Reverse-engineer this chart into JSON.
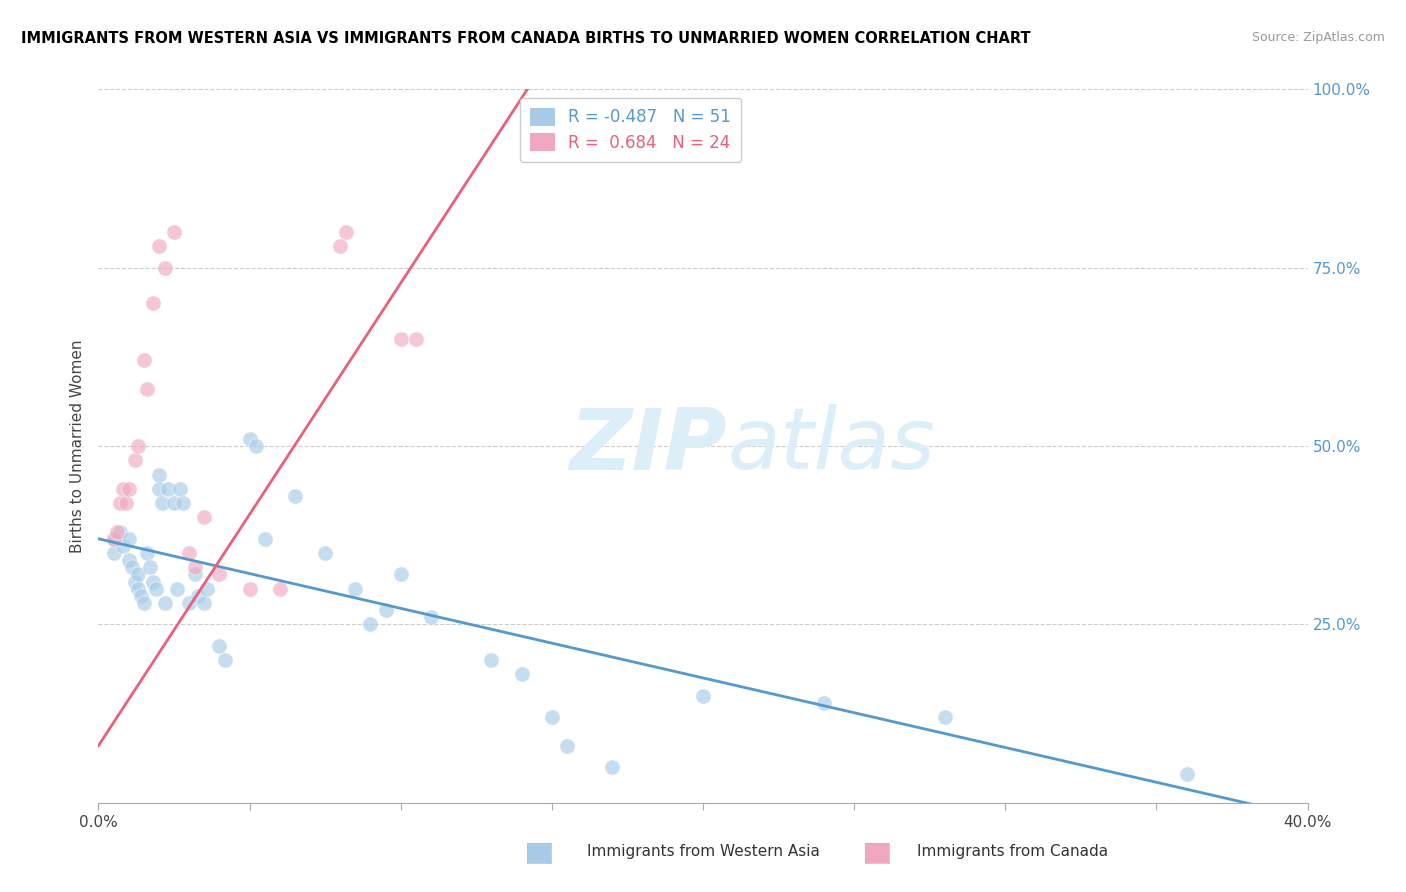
{
  "title": "IMMIGRANTS FROM WESTERN ASIA VS IMMIGRANTS FROM CANADA BIRTHS TO UNMARRIED WOMEN CORRELATION CHART",
  "source": "Source: ZipAtlas.com",
  "ylabel_label": "Births to Unmarried Women",
  "legend_blue": "Immigrants from Western Asia",
  "legend_pink": "Immigrants from Canada",
  "R_blue": -0.487,
  "N_blue": 51,
  "R_pink": 0.684,
  "N_pink": 24,
  "blue_color": "#a8cce8",
  "pink_color": "#f0a8c0",
  "blue_line_color": "#5599cc",
  "pink_line_color": "#e8607a",
  "watermark_color": "#dceef8",
  "blue_points": [
    [
      0.005,
      0.37
    ],
    [
      0.005,
      0.35
    ],
    [
      0.007,
      0.38
    ],
    [
      0.008,
      0.36
    ],
    [
      0.01,
      0.37
    ],
    [
      0.01,
      0.34
    ],
    [
      0.011,
      0.33
    ],
    [
      0.012,
      0.31
    ],
    [
      0.013,
      0.3
    ],
    [
      0.013,
      0.32
    ],
    [
      0.014,
      0.29
    ],
    [
      0.015,
      0.28
    ],
    [
      0.016,
      0.35
    ],
    [
      0.017,
      0.33
    ],
    [
      0.018,
      0.31
    ],
    [
      0.019,
      0.3
    ],
    [
      0.02,
      0.46
    ],
    [
      0.02,
      0.44
    ],
    [
      0.021,
      0.42
    ],
    [
      0.022,
      0.28
    ],
    [
      0.023,
      0.44
    ],
    [
      0.025,
      0.42
    ],
    [
      0.026,
      0.3
    ],
    [
      0.027,
      0.44
    ],
    [
      0.028,
      0.42
    ],
    [
      0.03,
      0.28
    ],
    [
      0.032,
      0.32
    ],
    [
      0.033,
      0.29
    ],
    [
      0.035,
      0.28
    ],
    [
      0.036,
      0.3
    ],
    [
      0.04,
      0.22
    ],
    [
      0.042,
      0.2
    ],
    [
      0.05,
      0.51
    ],
    [
      0.052,
      0.5
    ],
    [
      0.055,
      0.37
    ],
    [
      0.065,
      0.43
    ],
    [
      0.075,
      0.35
    ],
    [
      0.085,
      0.3
    ],
    [
      0.09,
      0.25
    ],
    [
      0.095,
      0.27
    ],
    [
      0.1,
      0.32
    ],
    [
      0.11,
      0.26
    ],
    [
      0.13,
      0.2
    ],
    [
      0.14,
      0.18
    ],
    [
      0.15,
      0.12
    ],
    [
      0.155,
      0.08
    ],
    [
      0.17,
      0.05
    ],
    [
      0.2,
      0.15
    ],
    [
      0.24,
      0.14
    ],
    [
      0.28,
      0.12
    ],
    [
      0.36,
      0.04
    ]
  ],
  "pink_points": [
    [
      0.005,
      0.37
    ],
    [
      0.006,
      0.38
    ],
    [
      0.007,
      0.42
    ],
    [
      0.008,
      0.44
    ],
    [
      0.009,
      0.42
    ],
    [
      0.01,
      0.44
    ],
    [
      0.012,
      0.48
    ],
    [
      0.013,
      0.5
    ],
    [
      0.015,
      0.62
    ],
    [
      0.016,
      0.58
    ],
    [
      0.018,
      0.7
    ],
    [
      0.02,
      0.78
    ],
    [
      0.022,
      0.75
    ],
    [
      0.025,
      0.8
    ],
    [
      0.03,
      0.35
    ],
    [
      0.032,
      0.33
    ],
    [
      0.035,
      0.4
    ],
    [
      0.04,
      0.32
    ],
    [
      0.05,
      0.3
    ],
    [
      0.06,
      0.3
    ],
    [
      0.08,
      0.78
    ],
    [
      0.082,
      0.8
    ],
    [
      0.1,
      0.65
    ],
    [
      0.105,
      0.65
    ]
  ],
  "x_min": 0.0,
  "x_max": 0.4,
  "y_min": 0.0,
  "y_max": 1.0,
  "ytick_vals": [
    0.25,
    0.5,
    0.75,
    1.0
  ],
  "ytick_labels": [
    "25.0%",
    "50.0%",
    "75.0%",
    "100.0%"
  ]
}
